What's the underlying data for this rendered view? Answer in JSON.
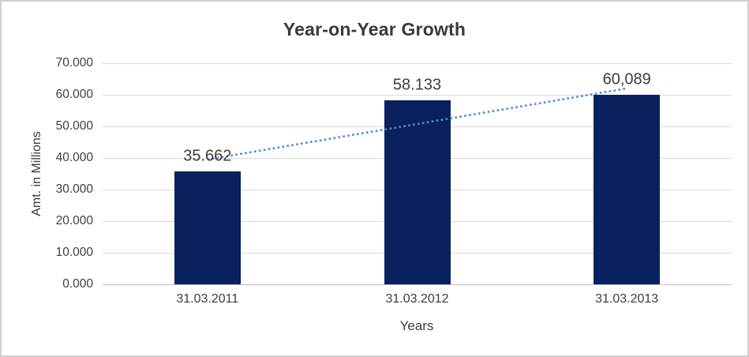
{
  "chart_data": {
    "type": "bar",
    "title": "Year-on-Year Growth",
    "categories": [
      "31.03.2011",
      "31.03.2012",
      "31.03.2013"
    ],
    "values": [
      35.662,
      58.133,
      60.089
    ],
    "data_labels": [
      "35.662",
      "58.133",
      "60,089"
    ],
    "xlabel": "Years",
    "ylabel": "Amt. in Millions",
    "ylim": [
      0,
      70
    ],
    "ytick_step": 10,
    "ytick_labels": [
      "0.000",
      "10.000",
      "20.000",
      "30.000",
      "40.000",
      "50.000",
      "60.000",
      "70.000"
    ],
    "grid": true,
    "legend_position": "none",
    "bar_color": "#0A2160",
    "gridline_color": "#D9D9D9",
    "axis_line_color": "#BFBFBF",
    "text_color": "#3C3C3C",
    "title_color": "#3A3A3A",
    "trendline": {
      "type": "linear",
      "style": "dotted",
      "color": "#4E8BCC",
      "start_value": 39.5,
      "end_value": 62.0
    }
  }
}
